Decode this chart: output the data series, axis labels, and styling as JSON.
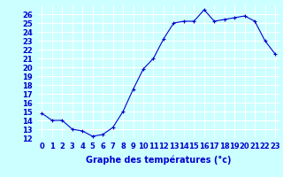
{
  "x": [
    0,
    1,
    2,
    3,
    4,
    5,
    6,
    7,
    8,
    9,
    10,
    11,
    12,
    13,
    14,
    15,
    16,
    17,
    18,
    19,
    20,
    21,
    22,
    23
  ],
  "y": [
    14.8,
    14.0,
    14.0,
    13.0,
    12.8,
    12.2,
    12.4,
    13.2,
    15.0,
    17.5,
    19.8,
    21.0,
    23.2,
    25.0,
    25.2,
    25.2,
    26.5,
    25.2,
    25.4,
    25.6,
    25.8,
    25.2,
    23.0,
    21.5
  ],
  "line_color": "#0000cc",
  "marker": "+",
  "marker_color": "#0000cc",
  "bg_color": "#ccffff",
  "grid_color": "#ffffff",
  "axis_label_color": "#0000cc",
  "xlabel": "Graphe des températures (°c)",
  "ylim": [
    12,
    27
  ],
  "xlim": [
    -0.5,
    23.5
  ],
  "yticks": [
    12,
    13,
    14,
    15,
    16,
    17,
    18,
    19,
    20,
    21,
    22,
    23,
    24,
    25,
    26
  ],
  "xticks": [
    0,
    1,
    2,
    3,
    4,
    5,
    6,
    7,
    8,
    9,
    10,
    11,
    12,
    13,
    14,
    15,
    16,
    17,
    18,
    19,
    20,
    21,
    22,
    23
  ],
  "xlabel_fontsize": 7,
  "tick_fontsize": 6
}
